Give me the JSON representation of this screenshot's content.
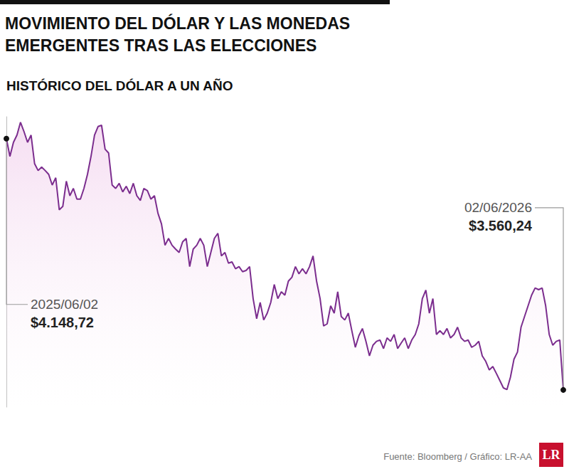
{
  "chart_data": {
    "type": "line",
    "title": "MOVIMIENTO DEL DÓLAR Y LAS MONEDAS EMERGENTES TRAS LAS ELECCIONES",
    "subtitle": "HISTÓRICO DEL DÓLAR A UN AÑO",
    "values": [
      4148.72,
      4107,
      4140,
      4157,
      4187,
      4165,
      4140,
      4157,
      4090,
      4074,
      4082,
      4074,
      4065,
      4040,
      4057,
      3982,
      3990,
      4049,
      4015,
      4032,
      4007,
      4007,
      4032,
      4065,
      4107,
      4157,
      4177,
      4180,
      4124,
      4115,
      4040,
      4032,
      4044,
      4024,
      4037,
      4020,
      4044,
      4015,
      4004,
      4032,
      4027,
      4007,
      4015,
      3974,
      3949,
      3899,
      3915,
      3899,
      3890,
      3882,
      3907,
      3915,
      3849,
      3890,
      3899,
      3915,
      3899,
      3849,
      3882,
      3915,
      3927,
      3874,
      3882,
      3857,
      3860,
      3844,
      3849,
      3837,
      3840,
      3849,
      3774,
      3727,
      3765,
      3724,
      3740,
      3765,
      3807,
      3774,
      3790,
      3782,
      3815,
      3824,
      3849,
      3832,
      3844,
      3832,
      3849,
      3874,
      3815,
      3774,
      3710,
      3715,
      3757,
      3740,
      3790,
      3732,
      3724,
      3740,
      3699,
      3660,
      3687,
      3704,
      3674,
      3640,
      3665,
      3674,
      3677,
      3657,
      3682,
      3674,
      3690,
      3657,
      3670,
      3682,
      3657,
      3677,
      3690,
      3715,
      3774,
      3794,
      3740,
      3774,
      3690,
      3699,
      3690,
      3704,
      3682,
      3690,
      3707,
      3682,
      3674,
      3677,
      3660,
      3665,
      3674,
      3640,
      3627,
      3607,
      3615,
      3599,
      3582,
      3565,
      3561,
      3590,
      3632,
      3649,
      3707,
      3732,
      3757,
      3782,
      3799,
      3795,
      3799,
      3757,
      3690,
      3665,
      3674,
      3677,
      3560.24
    ],
    "color": "#7b2d8e",
    "ylim": [
      3520,
      4200
    ],
    "grid": false,
    "tick_labels": false,
    "annotations": [
      {
        "label": "2025/06/02",
        "value": 4148.72,
        "value_label": "$4.148,72"
      },
      {
        "label": "02/06/2026",
        "value": 3560.24,
        "value_label": "$3.560,24"
      }
    ],
    "source": "Fuente: Bloomberg / Gráfico: LR-AA",
    "logo": "LR"
  }
}
